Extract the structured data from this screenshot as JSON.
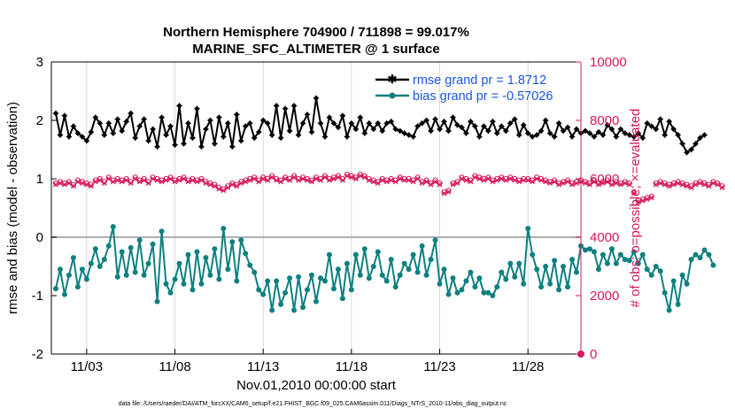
{
  "chart_data": {
    "type": "line",
    "title_line1": "Northern Hemisphere 704900 / 711898 = 99.017%",
    "title_line2": "MARINE_SFC_ALTIMETER @ 1 surface",
    "xlabel": "Nov.01,2010 00:00:00 start",
    "ylabel_left": "rmse and bias (model - observation)",
    "ylabel_right": "# of obs: o=possible; ×=evaluated",
    "xlim": [
      1,
      31
    ],
    "ylim_left": [
      -2,
      3
    ],
    "ylim_right": [
      0,
      10000
    ],
    "x_ticks": [
      3,
      8,
      13,
      18,
      23,
      28
    ],
    "x_tick_labels": [
      "11/03",
      "11/08",
      "11/13",
      "11/18",
      "11/23",
      "11/28"
    ],
    "y_ticks_left": [
      "-2",
      "-1",
      "0",
      "1",
      "2",
      "3"
    ],
    "y_ticks_right": [
      "0",
      "2000",
      "4000",
      "6000",
      "8000",
      "10000"
    ],
    "colors": {
      "rmse": "#000000",
      "bias": "#0f8080",
      "obs": "#d6175a",
      "right_axis": "#d6175a",
      "legend_text": "#1a56e0",
      "zero_line": "#b0b0b0"
    },
    "series": [
      {
        "name": "rmse grand pr = 1.8712",
        "axis": "left",
        "x_start": 1.25,
        "x_step": 0.25,
        "values": [
          2.12,
          1.75,
          2.08,
          1.72,
          1.9,
          1.78,
          1.72,
          1.65,
          1.8,
          2.05,
          1.95,
          1.75,
          1.95,
          1.78,
          2.02,
          1.82,
          1.98,
          2.12,
          1.7,
          1.9,
          2.02,
          1.65,
          1.85,
          1.55,
          2.05,
          1.75,
          1.9,
          1.58,
          2.25,
          1.6,
          1.95,
          1.7,
          2.2,
          1.55,
          1.85,
          2.0,
          1.6,
          2.05,
          1.72,
          1.95,
          1.55,
          2.1,
          1.65,
          1.9,
          1.95,
          1.7,
          1.8,
          2.0,
          1.95,
          1.75,
          2.25,
          1.7,
          2.2,
          1.82,
          2.25,
          1.75,
          1.95,
          2.1,
          1.8,
          2.38,
          1.95,
          1.72,
          2.05,
          1.95,
          1.88,
          2.08,
          1.72,
          1.95,
          1.85,
          2.05,
          1.78,
          1.95,
          1.85,
          1.95,
          1.82,
          1.95,
          1.98,
          1.85,
          1.82,
          1.78,
          1.75,
          1.72,
          1.9,
          1.95,
          2.0,
          1.82,
          2.02,
          1.85,
          1.98,
          1.82,
          2.05,
          1.92,
          1.88,
          1.78,
          1.98,
          1.9,
          1.72,
          1.9,
          1.82,
          1.98,
          1.78,
          1.9,
          1.82,
          1.95,
          2.02,
          1.75,
          1.92,
          1.78,
          1.72,
          1.75,
          1.82,
          2.0,
          1.78,
          1.72,
          1.95,
          1.82,
          1.88,
          1.72,
          1.85,
          1.78,
          1.82,
          1.78,
          1.72,
          1.8,
          1.75,
          1.92,
          1.85,
          1.72,
          1.85,
          1.78,
          1.75,
          1.72,
          1.78,
          1.7,
          1.95,
          1.9,
          1.85,
          2.02,
          1.75,
          1.98,
          1.85,
          1.75,
          1.6,
          1.45,
          1.5,
          1.6,
          1.7,
          1.75
        ]
      },
      {
        "name": "bias grand pr = -0.57026",
        "axis": "left",
        "x_start": 1.25,
        "x_step": 0.25,
        "values": [
          -0.88,
          -0.55,
          -0.98,
          -0.65,
          -0.35,
          -0.85,
          -0.55,
          -0.72,
          -0.45,
          -0.2,
          -0.5,
          -0.38,
          -0.15,
          0.18,
          -0.68,
          -0.25,
          -0.65,
          -0.18,
          -0.6,
          -0.05,
          -0.65,
          -0.45,
          -0.12,
          -1.1,
          0.1,
          -0.8,
          -0.95,
          -0.72,
          -0.45,
          -0.8,
          -0.3,
          -0.9,
          -0.25,
          -0.8,
          -0.35,
          -0.65,
          -0.2,
          -0.72,
          0.15,
          -0.55,
          -0.08,
          -0.75,
          -0.05,
          -0.28,
          -0.48,
          -0.6,
          -0.9,
          -0.98,
          -0.75,
          -1.25,
          -0.75,
          -1.15,
          -0.95,
          -0.7,
          -1.25,
          -0.68,
          -1.2,
          -0.9,
          -0.65,
          -1.1,
          -0.7,
          -0.75,
          -0.3,
          -0.88,
          -0.55,
          -1.05,
          -0.45,
          -0.9,
          -0.3,
          -0.65,
          -0.2,
          -0.7,
          -0.5,
          -0.25,
          -0.65,
          -0.75,
          -0.38,
          -0.85,
          -0.65,
          -0.45,
          -0.55,
          -0.3,
          -0.6,
          -0.15,
          -0.65,
          -0.38,
          -0.05,
          -0.8,
          -0.55,
          -0.98,
          -0.7,
          -0.95,
          -0.9,
          -0.75,
          -0.6,
          -0.85,
          -0.7,
          -0.95,
          -0.95,
          -1.0,
          -0.85,
          -0.6,
          -0.72,
          -0.45,
          -0.68,
          -0.45,
          -0.8,
          0.15,
          -0.3,
          -0.55,
          -0.85,
          -0.5,
          -0.8,
          -0.4,
          -0.9,
          -0.5,
          -0.85,
          -0.38,
          -0.6,
          -0.15,
          -0.22,
          -0.2,
          -0.25,
          -0.55,
          -0.3,
          -0.45,
          -0.2,
          -0.45,
          -0.3,
          -0.38,
          -0.4,
          -0.25,
          -0.45,
          -0.3,
          -0.55,
          -0.65,
          -0.5,
          -0.58,
          -0.95,
          -1.25,
          -0.75,
          -1.15,
          -0.65,
          -0.8,
          -0.38,
          -0.3,
          -0.35,
          -0.22,
          -0.3,
          -0.48
        ]
      },
      {
        "name": "# of obs possible",
        "axis": "right",
        "x_start": 1.25,
        "x_step": 0.25,
        "values": [
          5850,
          5900,
          5850,
          5900,
          5800,
          5950,
          5900,
          5850,
          5800,
          5950,
          6000,
          5900,
          6050,
          5950,
          6000,
          5950,
          6000,
          5900,
          6050,
          5950,
          6000,
          5900,
          6050,
          6000,
          5950,
          6000,
          6050,
          5950,
          6000,
          6050,
          5950,
          6000,
          5950,
          6000,
          5900,
          5850,
          5800,
          5700,
          5650,
          5750,
          5850,
          5800,
          5900,
          5950,
          6000,
          6050,
          5950,
          6050,
          6000,
          6100,
          6000,
          5950,
          6050,
          6000,
          6100,
          6000,
          6050,
          6000,
          5950,
          6050,
          6000,
          6100,
          6000,
          6050,
          6100,
          6000,
          6150,
          6100,
          6050,
          6150,
          6100,
          6000,
          5950,
          5900,
          6000,
          5950,
          6000,
          5950,
          6050,
          6000,
          6000,
          5950,
          6050,
          5900,
          5950,
          5850,
          5950,
          5850,
          5550,
          5600,
          5850,
          5900,
          6050,
          6000,
          5950,
          6100,
          6050,
          6000,
          6050,
          5950,
          6000,
          6050,
          6000,
          6050,
          6000,
          5950,
          6000,
          6000,
          5950,
          6050,
          6000,
          5950,
          5900,
          5950,
          5850,
          5900,
          5950,
          5850,
          5900,
          5950,
          5900,
          5850,
          5950,
          5850,
          5900,
          5950,
          5850,
          5900,
          5850,
          5900,
          5850,
          5550,
          5250,
          5300,
          5350,
          5400,
          5850,
          5900,
          5850,
          5800,
          5850,
          5900,
          5850,
          5800,
          5750,
          5850,
          5900,
          5850,
          5800,
          5900,
          5850,
          5750
        ]
      },
      {
        "name": "# of obs evaluated",
        "axis": "right",
        "x_start": 1.25,
        "x_step": 0.25,
        "values": [
          5800,
          5850,
          5800,
          5850,
          5750,
          5900,
          5850,
          5800,
          5750,
          5900,
          5950,
          5850,
          6000,
          5900,
          5950,
          5900,
          5950,
          5850,
          6000,
          5900,
          5950,
          5850,
          6000,
          5950,
          5900,
          5950,
          6000,
          5900,
          5950,
          6000,
          5900,
          5950,
          5900,
          5950,
          5850,
          5800,
          5750,
          5650,
          5600,
          5700,
          5800,
          5750,
          5850,
          5900,
          5950,
          6000,
          5900,
          6000,
          5950,
          6050,
          5950,
          5900,
          6000,
          5950,
          6050,
          5950,
          6000,
          5950,
          5900,
          6000,
          5950,
          6050,
          5950,
          6000,
          6050,
          5950,
          6100,
          6050,
          6000,
          6100,
          6050,
          5950,
          5900,
          5850,
          5950,
          5900,
          5950,
          5900,
          6000,
          5950,
          5950,
          5900,
          6000,
          5850,
          5900,
          5800,
          5900,
          5800,
          5500,
          5550,
          5800,
          5850,
          6000,
          5950,
          5900,
          6050,
          6000,
          5950,
          6000,
          5900,
          5950,
          6000,
          5950,
          6000,
          5950,
          5900,
          5950,
          5950,
          5900,
          6000,
          5950,
          5900,
          5850,
          5900,
          5800,
          5850,
          5900,
          5800,
          5850,
          5900,
          5850,
          5800,
          5900,
          5800,
          5850,
          5900,
          5800,
          5850,
          5800,
          5850,
          5800,
          5500,
          5200,
          5250,
          5300,
          5350,
          5800,
          5850,
          5800,
          5750,
          5800,
          5850,
          5800,
          5750,
          5700,
          5800,
          5850,
          5800,
          5750,
          5850,
          5800,
          5700
        ]
      }
    ],
    "extra_points": [
      {
        "name": "obs-marker-at-zero",
        "axis": "right",
        "x": 31,
        "value": 0
      }
    ],
    "legend_location": "top-right"
  },
  "footer_text": "data file: /Users/raeder/DAI/ATM_forcXX/CAM6_setup/f.e21.FHIST_BGC.f09_025.CAM6assim.011/Diags_NTrS_2010-11/obs_diag_output.nc"
}
